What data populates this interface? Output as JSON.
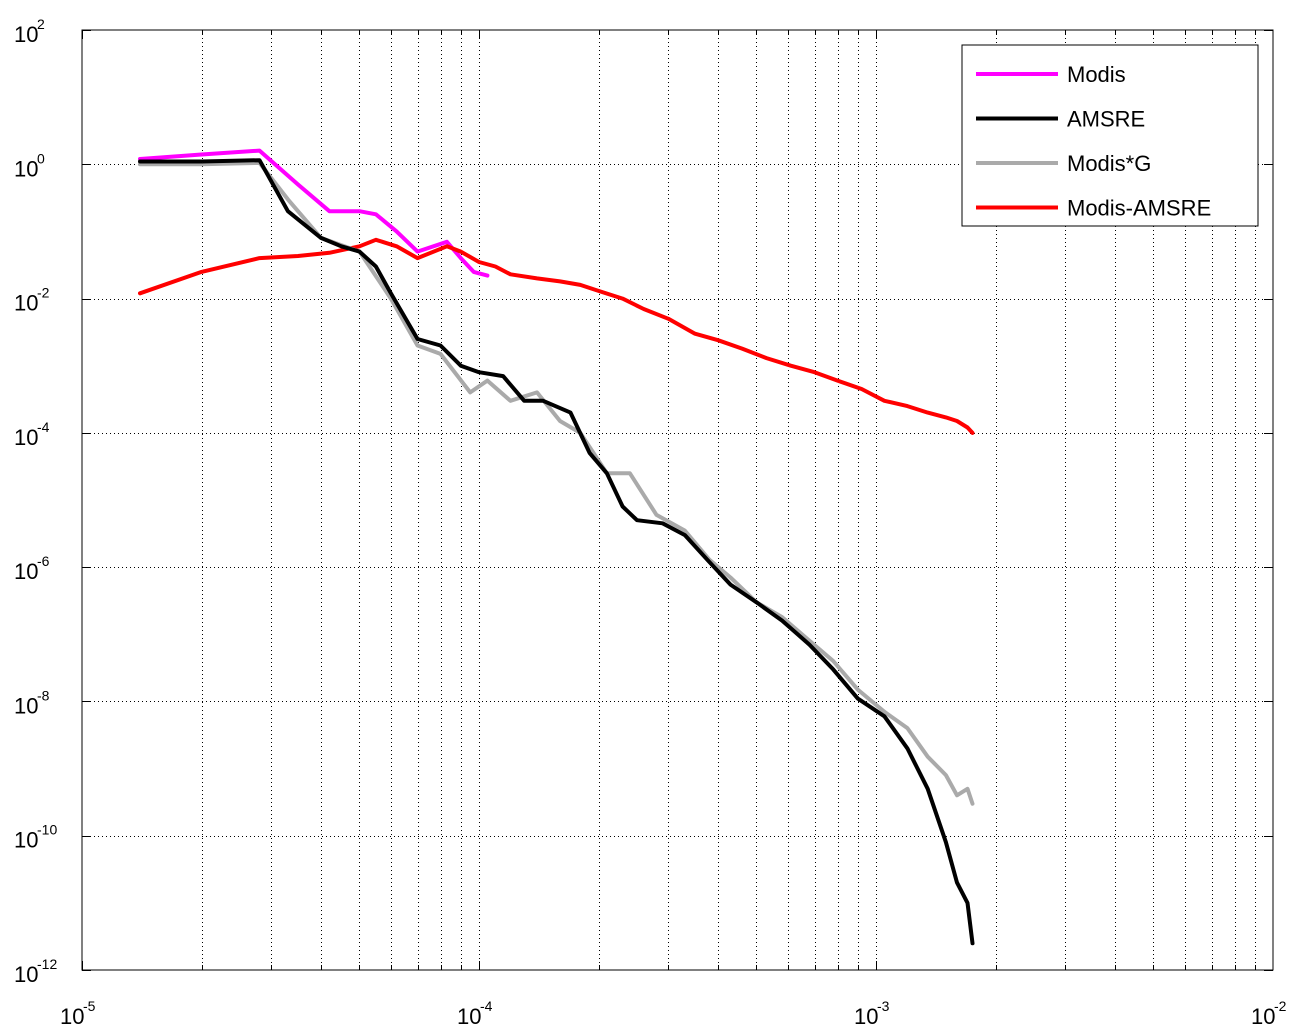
{
  "chart_data": {
    "type": "line",
    "xscale": "log",
    "yscale": "log",
    "xlim": [
      1e-05,
      0.01
    ],
    "ylim": [
      1e-12,
      100
    ],
    "grid": true,
    "legend_position": "top-right",
    "x_ticks": [
      {
        "value": 1e-05,
        "base": "10",
        "exp": "-5"
      },
      {
        "value": 0.0001,
        "base": "10",
        "exp": "-4"
      },
      {
        "value": 0.001,
        "base": "10",
        "exp": "-3"
      },
      {
        "value": 0.01,
        "base": "10",
        "exp": "-2"
      }
    ],
    "y_ticks": [
      {
        "value": 100,
        "base": "10",
        "exp": "2"
      },
      {
        "value": 1,
        "base": "10",
        "exp": "0"
      },
      {
        "value": 0.01,
        "base": "10",
        "exp": "-2"
      },
      {
        "value": 0.0001,
        "base": "10",
        "exp": "-4"
      },
      {
        "value": 1e-06,
        "base": "10",
        "exp": "-6"
      },
      {
        "value": 1e-08,
        "base": "10",
        "exp": "-8"
      },
      {
        "value": 1e-10,
        "base": "10",
        "exp": "-10"
      },
      {
        "value": 1e-12,
        "base": "10",
        "exp": "-12"
      }
    ],
    "series": [
      {
        "name": "Modis",
        "color": "#ff00ff",
        "x": [
          1.4e-05,
          2e-05,
          2.8e-05,
          3.5e-05,
          4.2e-05,
          5e-05,
          5.5e-05,
          6.2e-05,
          7e-05,
          8.3e-05,
          9e-05,
          9.7e-05,
          0.000105
        ],
        "y": [
          1.2,
          1.4,
          1.6,
          0.5,
          0.2,
          0.2,
          0.18,
          0.1,
          0.05,
          0.07,
          0.04,
          0.025,
          0.022
        ]
      },
      {
        "name": "AMSRE",
        "color": "#000000",
        "x": [
          1.4e-05,
          2e-05,
          2.8e-05,
          3.3e-05,
          4e-05,
          4.5e-05,
          5e-05,
          5.5e-05,
          6e-05,
          7e-05,
          8e-05,
          9e-05,
          0.0001,
          0.000115,
          0.00013,
          0.000145,
          0.00017,
          0.00019,
          0.00021,
          0.00023,
          0.00025,
          0.00029,
          0.00033,
          0.00038,
          0.00043,
          0.0005,
          0.00058,
          0.00068,
          0.00078,
          0.0009,
          0.00105,
          0.0012,
          0.00135,
          0.0015,
          0.0016,
          0.0017,
          0.00175
        ],
        "y": [
          1.1,
          1.1,
          1.15,
          0.2,
          0.08,
          0.06,
          0.05,
          0.03,
          0.012,
          0.0025,
          0.002,
          0.001,
          0.0008,
          0.0007,
          0.0003,
          0.0003,
          0.0002,
          5e-05,
          2.5e-05,
          8e-06,
          5e-06,
          4.5e-06,
          3e-06,
          1.2e-06,
          5.5e-07,
          3e-07,
          1.6e-07,
          7e-08,
          3e-08,
          1.1e-08,
          6e-09,
          2e-09,
          5e-10,
          8e-11,
          2e-11,
          1e-11,
          2.5e-12
        ]
      },
      {
        "name": "Modis*G",
        "color": "#aaaaaa",
        "x": [
          1.4e-05,
          2e-05,
          2.8e-05,
          3.3e-05,
          4e-05,
          5e-05,
          6e-05,
          7e-05,
          8e-05,
          9.5e-05,
          0.000105,
          0.00012,
          0.00014,
          0.00016,
          0.00018,
          0.00021,
          0.00024,
          0.00028,
          0.00033,
          0.00038,
          0.00043,
          0.0005,
          0.00058,
          0.00068,
          0.00078,
          0.0009,
          0.00105,
          0.0012,
          0.00135,
          0.0015,
          0.0016,
          0.0017,
          0.00175
        ],
        "y": [
          1.0,
          1.0,
          1.05,
          0.3,
          0.08,
          0.05,
          0.01,
          0.002,
          0.0015,
          0.0004,
          0.0006,
          0.0003,
          0.0004,
          0.00015,
          0.0001,
          2.5e-05,
          2.5e-05,
          6e-06,
          3.5e-06,
          1.3e-06,
          7e-07,
          3e-07,
          1.8e-07,
          8e-08,
          4e-08,
          1.5e-08,
          7e-09,
          4e-09,
          1.5e-09,
          8e-10,
          4e-10,
          5e-10,
          3e-10
        ]
      },
      {
        "name": "Modis-AMSRE",
        "color": "#ff0000",
        "x": [
          1.4e-05,
          2e-05,
          2.8e-05,
          3.5e-05,
          4.2e-05,
          5e-05,
          5.5e-05,
          6.2e-05,
          7e-05,
          8.3e-05,
          9e-05,
          0.0001,
          0.00011,
          0.00012,
          0.00014,
          0.00016,
          0.00018,
          0.0002,
          0.00023,
          0.00026,
          0.0003,
          0.00035,
          0.0004,
          0.00046,
          0.00053,
          0.00061,
          0.0007,
          0.0008,
          0.00092,
          0.00105,
          0.0012,
          0.00135,
          0.0015,
          0.0016,
          0.0017,
          0.00175
        ],
        "y": [
          0.012,
          0.025,
          0.04,
          0.043,
          0.048,
          0.06,
          0.075,
          0.06,
          0.04,
          0.06,
          0.05,
          0.035,
          0.03,
          0.023,
          0.02,
          0.018,
          0.016,
          0.013,
          0.01,
          0.007,
          0.005,
          0.003,
          0.0024,
          0.0018,
          0.0013,
          0.001,
          0.0008,
          0.0006,
          0.00045,
          0.0003,
          0.00025,
          0.0002,
          0.00017,
          0.00015,
          0.00012,
          0.0001
        ]
      }
    ]
  }
}
